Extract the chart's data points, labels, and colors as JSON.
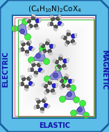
{
  "title": "(C$_4$H$_{10}$N)$_2$CoX$_4$",
  "label_left": "ELECTRIC",
  "label_right": "MAGNETIC",
  "label_bottom": "ELASTIC",
  "outer_bg": "#5bbde8",
  "outer_border_color": "#1a5fa0",
  "inner_border_color_pink": "#d06080",
  "inner_border_color_green": "#40b840",
  "title_fontsize": 7.5,
  "label_fontsize": 7.0,
  "label_color": "#1010aa",
  "figsize": [
    1.57,
    1.89
  ],
  "dpi": 100,
  "cobalt_color": "#7878cc",
  "halide_color": "#44ee44",
  "carbon_color": "#555555",
  "nitrogen_color": "#2222cc",
  "hydrogen_color": "#dddddd",
  "bond_color": "#444444",
  "inner_bg_center": "#f5f5f5",
  "inner_bg_edge": "#c8c8c8"
}
